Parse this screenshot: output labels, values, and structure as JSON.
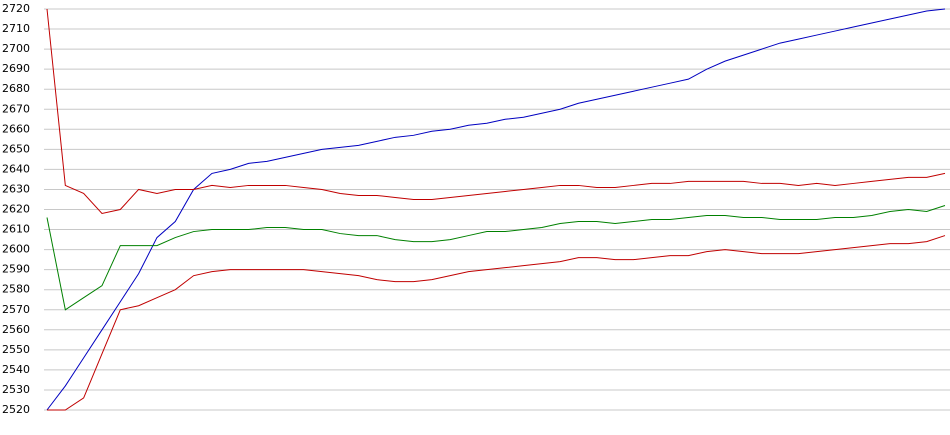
{
  "chart_data": {
    "type": "line",
    "categories": [
      null,
      null,
      null,
      null,
      null,
      null,
      null,
      null,
      null,
      null,
      null,
      null,
      null,
      null,
      null,
      null,
      null,
      null,
      null,
      null,
      null,
      null,
      null,
      null,
      null,
      null,
      null,
      null,
      null,
      null,
      null,
      null,
      null,
      null,
      null,
      null,
      null,
      null,
      null,
      null,
      null,
      null,
      null,
      null,
      null,
      null,
      null,
      null,
      null,
      null
    ],
    "ylim": [
      2520,
      2720
    ],
    "yticks": [
      2520,
      2530,
      2540,
      2550,
      2560,
      2570,
      2580,
      2590,
      2600,
      2610,
      2620,
      2630,
      2640,
      2650,
      2660,
      2670,
      2680,
      2690,
      2700,
      2710,
      2720
    ],
    "grid": true,
    "series": [
      {
        "color": "#0000c0",
        "values": [
          2520,
          2532,
          2546,
          2560,
          2574,
          2588,
          2606,
          2614,
          2630,
          2638,
          2640,
          2643,
          2644,
          2646,
          2648,
          2650,
          2651,
          2652,
          2654,
          2656,
          2657,
          2659,
          2660,
          2662,
          2663,
          2665,
          2666,
          2668,
          2670,
          2673,
          2675,
          2677,
          2679,
          2681,
          2683,
          2685,
          2690,
          2694,
          2697,
          2700,
          2703,
          2705,
          2707,
          2709,
          2711,
          2713,
          2715,
          2717,
          2719,
          2720
        ]
      },
      {
        "color": "#c00000",
        "values": [
          2720,
          2632,
          2628,
          2618,
          2620,
          2630,
          2628,
          2630,
          2630,
          2632,
          2631,
          2632,
          2632,
          2632,
          2631,
          2630,
          2628,
          2627,
          2627,
          2626,
          2625,
          2625,
          2626,
          2627,
          2628,
          2629,
          2630,
          2631,
          2632,
          2632,
          2631,
          2631,
          2632,
          2633,
          2633,
          2634,
          2634,
          2634,
          2634,
          2633,
          2633,
          2632,
          2633,
          2632,
          2633,
          2634,
          2635,
          2636,
          2636,
          2638
        ]
      },
      {
        "color": "#008000",
        "values": [
          2616,
          2570,
          2576,
          2582,
          2602,
          2602,
          2602,
          2606,
          2609,
          2610,
          2610,
          2610,
          2611,
          2611,
          2610,
          2610,
          2608,
          2607,
          2607,
          2605,
          2604,
          2604,
          2605,
          2607,
          2609,
          2609,
          2610,
          2611,
          2613,
          2614,
          2614,
          2613,
          2614,
          2615,
          2615,
          2616,
          2617,
          2617,
          2616,
          2616,
          2615,
          2615,
          2615,
          2616,
          2616,
          2617,
          2619,
          2620,
          2619,
          2622
        ]
      },
      {
        "color": "#c00000",
        "values": [
          2520,
          2520,
          2526,
          2548,
          2570,
          2572,
          2576,
          2580,
          2587,
          2589,
          2590,
          2590,
          2590,
          2590,
          2590,
          2589,
          2588,
          2587,
          2585,
          2584,
          2584,
          2585,
          2587,
          2589,
          2590,
          2591,
          2592,
          2593,
          2594,
          2596,
          2596,
          2595,
          2595,
          2596,
          2597,
          2597,
          2599,
          2600,
          2599,
          2598,
          2598,
          2598,
          2599,
          2600,
          2601,
          2602,
          2603,
          2603,
          2604,
          2607
        ]
      }
    ]
  }
}
